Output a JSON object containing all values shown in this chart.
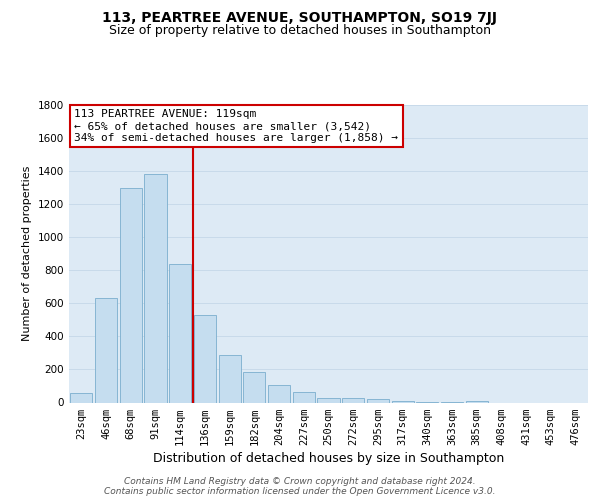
{
  "title1": "113, PEARTREE AVENUE, SOUTHAMPTON, SO19 7JJ",
  "title2": "Size of property relative to detached houses in Southampton",
  "xlabel": "Distribution of detached houses by size in Southampton",
  "ylabel": "Number of detached properties",
  "categories": [
    "23sqm",
    "46sqm",
    "68sqm",
    "91sqm",
    "114sqm",
    "136sqm",
    "159sqm",
    "182sqm",
    "204sqm",
    "227sqm",
    "250sqm",
    "272sqm",
    "295sqm",
    "317sqm",
    "340sqm",
    "363sqm",
    "385sqm",
    "408sqm",
    "431sqm",
    "453sqm",
    "476sqm"
  ],
  "values": [
    55,
    635,
    1300,
    1380,
    840,
    530,
    285,
    185,
    105,
    65,
    30,
    25,
    20,
    8,
    2,
    2,
    10,
    0,
    0,
    0,
    0
  ],
  "bar_color": "#c5ddef",
  "bar_edge_color": "#7baece",
  "vline_x_index": 4.5,
  "vline_color": "#cc0000",
  "annotation_line1": "113 PEARTREE AVENUE: 119sqm",
  "annotation_line2": "← 65% of detached houses are smaller (3,542)",
  "annotation_line3": "34% of semi-detached houses are larger (1,858) →",
  "annotation_box_color": "#cc0000",
  "ylim": [
    0,
    1800
  ],
  "yticks": [
    0,
    200,
    400,
    600,
    800,
    1000,
    1200,
    1400,
    1600,
    1800
  ],
  "grid_color": "#c8daea",
  "background_color": "#ddeaf5",
  "footer": "Contains HM Land Registry data © Crown copyright and database right 2024.\nContains public sector information licensed under the Open Government Licence v3.0.",
  "title1_fontsize": 10,
  "title2_fontsize": 9,
  "xlabel_fontsize": 9,
  "ylabel_fontsize": 8,
  "tick_fontsize": 7.5,
  "annotation_fontsize": 8,
  "footer_fontsize": 6.5
}
